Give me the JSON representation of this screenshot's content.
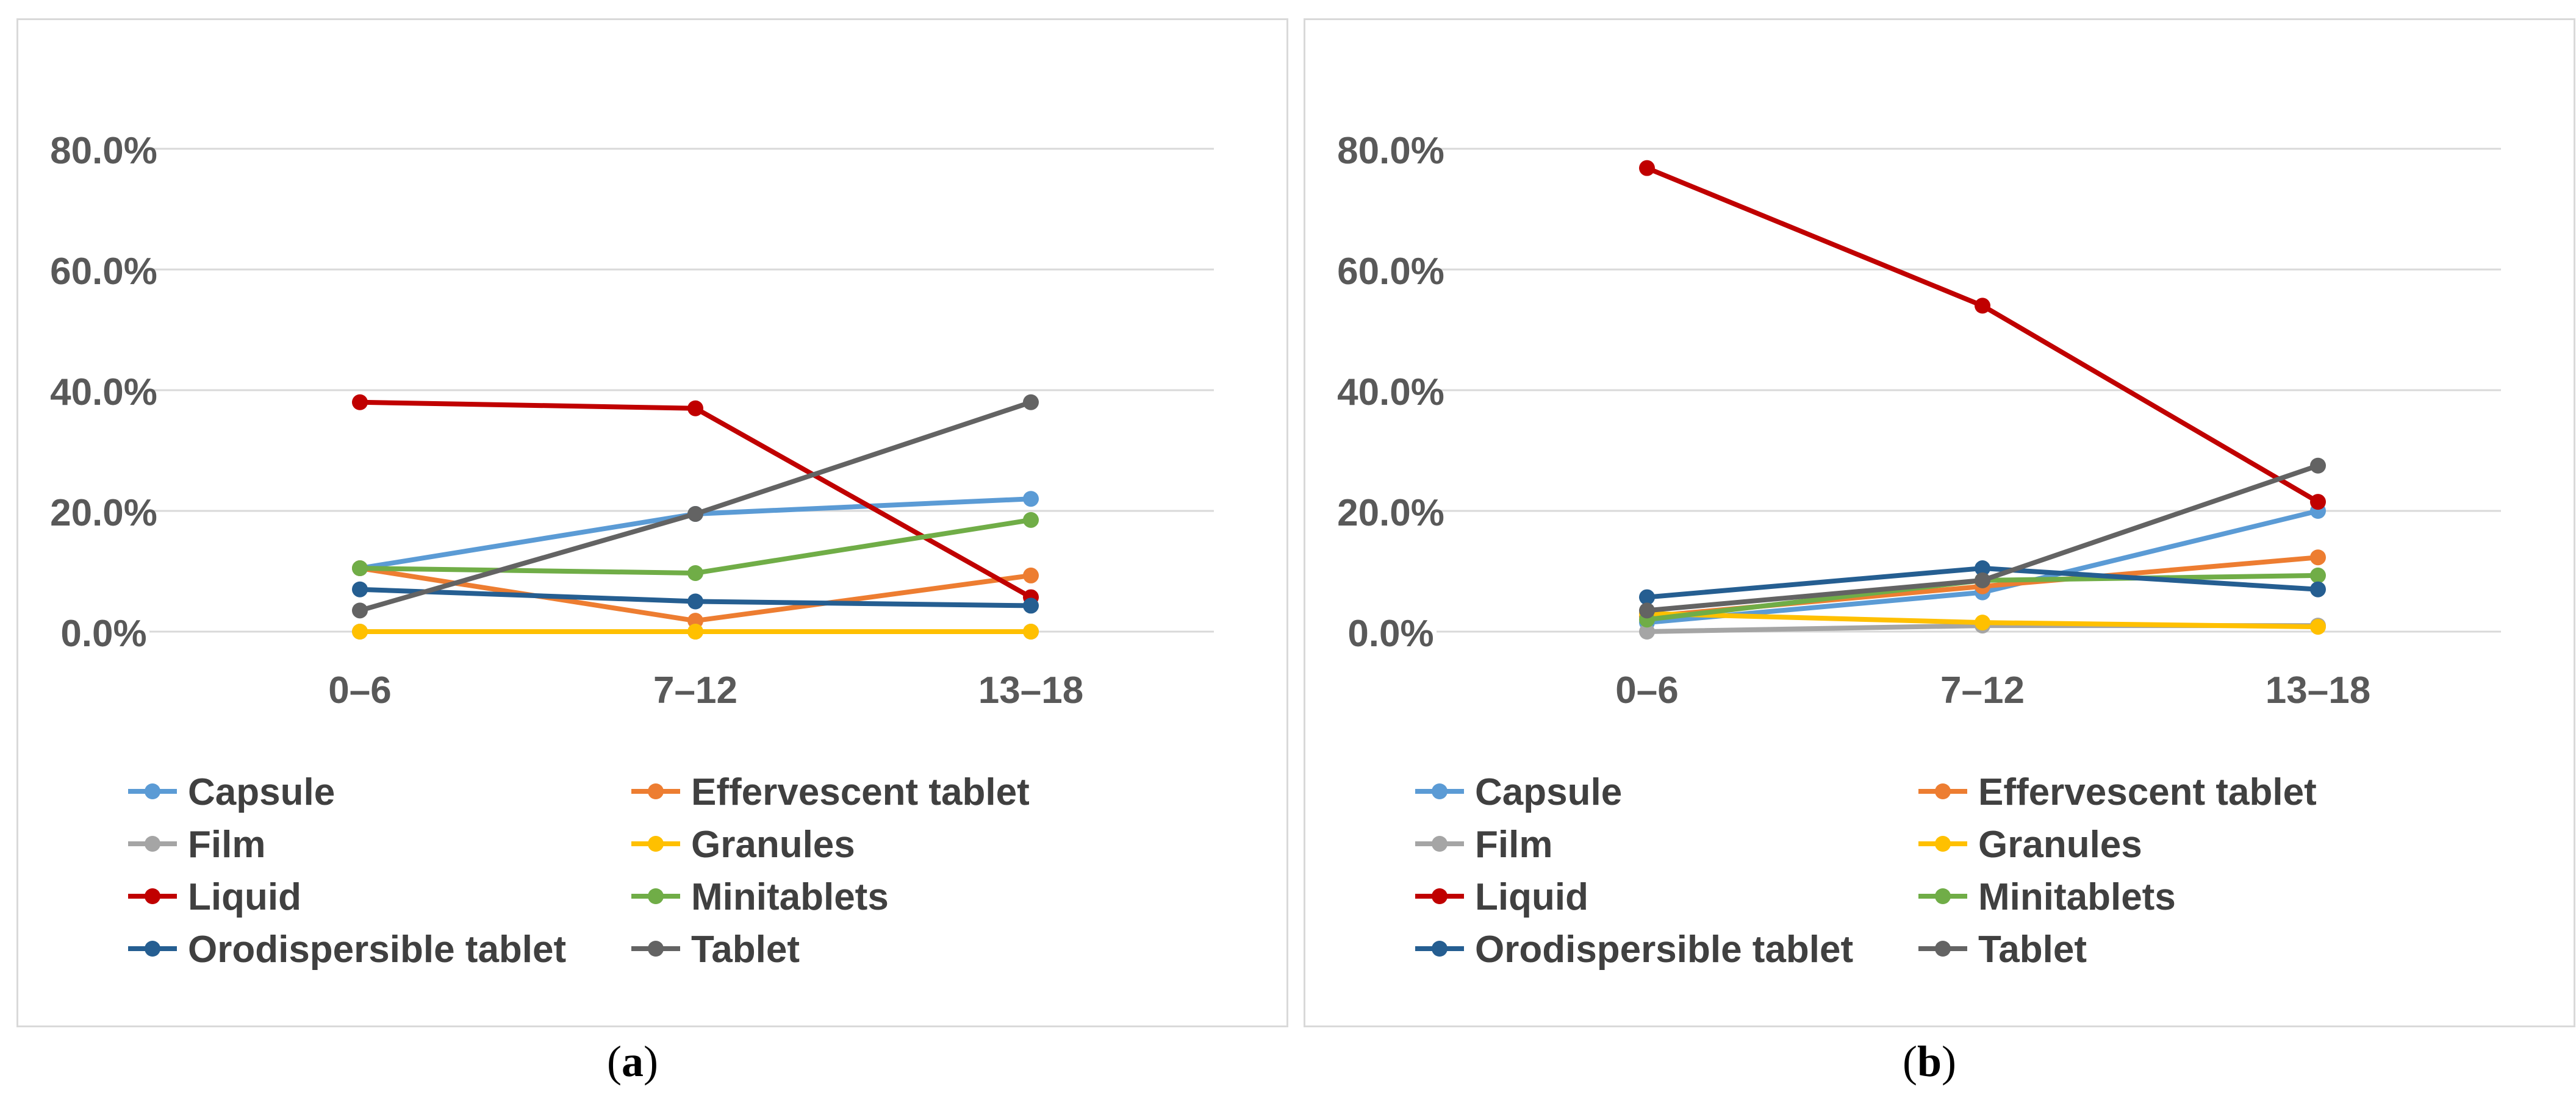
{
  "captions": {
    "a": "a",
    "b": "b"
  },
  "chart_data": [
    {
      "id": "a",
      "type": "line",
      "categories": [
        "0–6",
        "7–12",
        "13–18"
      ],
      "yticks": [
        "0.0%",
        "20.0%",
        "40.0%",
        "60.0%",
        "80.0%"
      ],
      "ylim": [
        0,
        0.9
      ],
      "series": [
        {
          "name": "Capsule",
          "color": "#5b9bd5",
          "values": [
            0.105,
            0.195,
            0.22
          ]
        },
        {
          "name": "Effervescent tablet",
          "color": "#ed7d31",
          "values": [
            0.105,
            0.018,
            0.093
          ]
        },
        {
          "name": "Film",
          "color": "#a5a5a5",
          "values": [
            0.0,
            0.0,
            0.0
          ]
        },
        {
          "name": "Granules",
          "color": "#ffc000",
          "values": [
            0.0,
            0.0,
            0.0
          ]
        },
        {
          "name": "Liquid",
          "color": "#c00000",
          "values": [
            0.38,
            0.37,
            0.057
          ]
        },
        {
          "name": "Minitablets",
          "color": "#70ad47",
          "values": [
            0.105,
            0.097,
            0.185
          ]
        },
        {
          "name": "Orodispersible tablet",
          "color": "#255e91",
          "values": [
            0.07,
            0.05,
            0.043
          ]
        },
        {
          "name": "Tablet",
          "color": "#636363",
          "values": [
            0.035,
            0.195,
            0.38
          ]
        }
      ]
    },
    {
      "id": "b",
      "type": "line",
      "categories": [
        "0–6",
        "7–12",
        "13–18"
      ],
      "yticks": [
        "0.0%",
        "20.0%",
        "40.0%",
        "60.0%",
        "80.0%"
      ],
      "ylim": [
        0,
        0.9
      ],
      "series": [
        {
          "name": "Capsule",
          "color": "#5b9bd5",
          "values": [
            0.015,
            0.065,
            0.2
          ]
        },
        {
          "name": "Effervescent tablet",
          "color": "#ed7d31",
          "values": [
            0.025,
            0.075,
            0.123
          ]
        },
        {
          "name": "Film",
          "color": "#a5a5a5",
          "values": [
            0.0,
            0.01,
            0.01
          ]
        },
        {
          "name": "Granules",
          "color": "#ffc000",
          "values": [
            0.03,
            0.015,
            0.008
          ]
        },
        {
          "name": "Liquid",
          "color": "#c00000",
          "values": [
            0.768,
            0.54,
            0.215
          ]
        },
        {
          "name": "Minitablets",
          "color": "#70ad47",
          "values": [
            0.02,
            0.085,
            0.093
          ]
        },
        {
          "name": "Orodispersible tablet",
          "color": "#255e91",
          "values": [
            0.057,
            0.105,
            0.07
          ]
        },
        {
          "name": "Tablet",
          "color": "#636363",
          "values": [
            0.035,
            0.085,
            0.275
          ]
        }
      ]
    }
  ]
}
